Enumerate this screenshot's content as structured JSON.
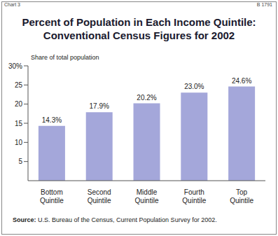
{
  "chart_data": {
    "type": "bar",
    "header_left": "Chart 3",
    "header_right": "B 1791",
    "title": "Percent of Population in Each Income Quintile: Conventional Census Figures for 2002",
    "y_label": "Share of total population",
    "categories": [
      "Bottom Quintile",
      "Second Quintile",
      "Middle Quintile",
      "Fourth Quintile",
      "Top Quintile"
    ],
    "values": [
      14.3,
      17.9,
      20.2,
      23.0,
      24.6
    ],
    "value_labels": [
      "14.3%",
      "17.9%",
      "20.2%",
      "23.0%",
      "24.6%"
    ],
    "data_labels": true,
    "color": "#a4a7da",
    "ylim": [
      0,
      30
    ],
    "yticks": [
      5,
      10,
      15,
      20,
      25,
      {
        "value": 30,
        "label": "30%"
      }
    ],
    "grid": false,
    "source": "Source: U.S. Bureau of the Census, Current Population Survey for 2002."
  }
}
